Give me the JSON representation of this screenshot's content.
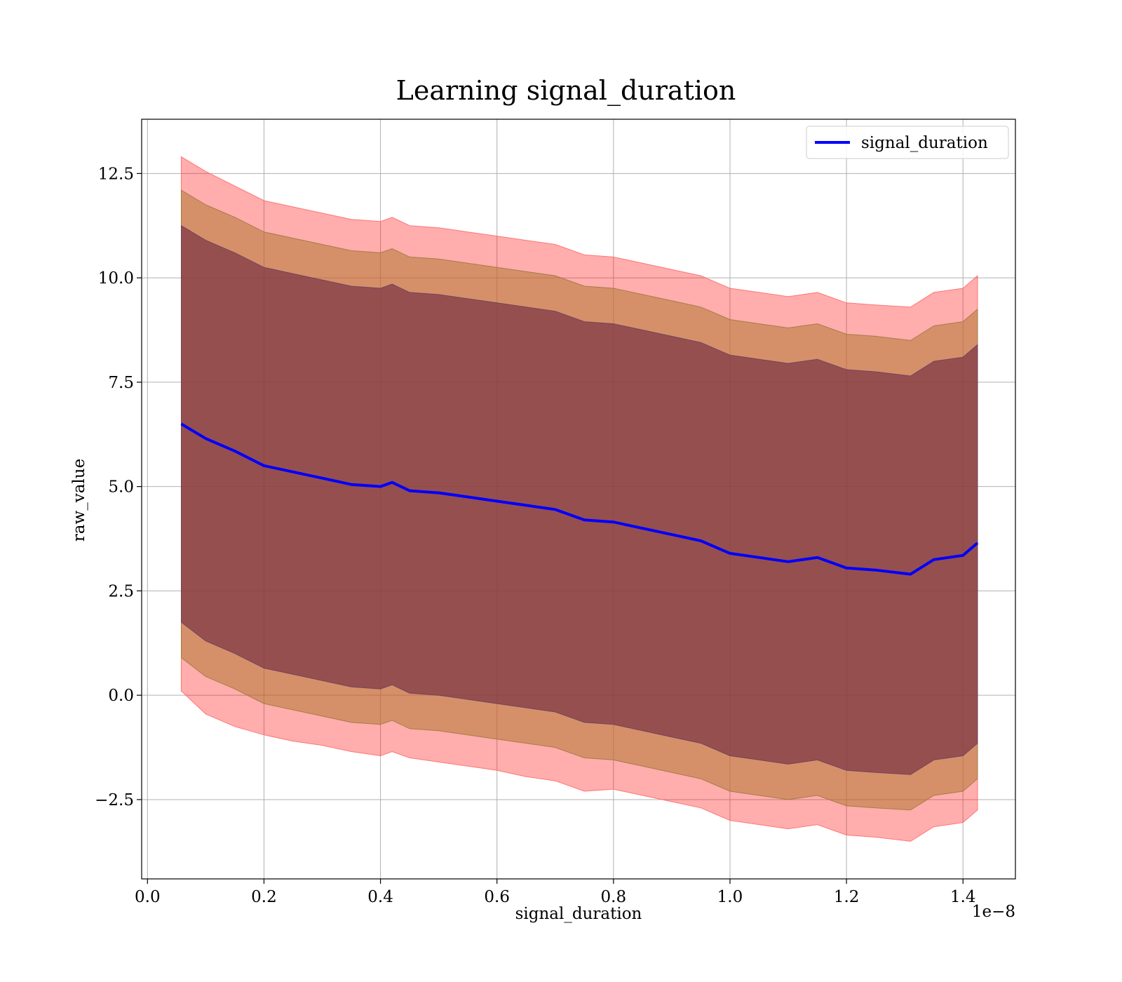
{
  "chart_data": {
    "type": "line",
    "title": "Learning signal_duration",
    "xlabel": "signal_duration",
    "ylabel": "raw_value",
    "x_offset_label": "1e−8",
    "xlim": [
      -0.01,
      1.49
    ],
    "ylim": [
      -4.4,
      13.8
    ],
    "x_ticks": [
      0.0,
      0.2,
      0.4,
      0.6,
      0.8,
      1.0,
      1.2,
      1.4
    ],
    "x_tick_labels": [
      "0.0",
      "0.2",
      "0.4",
      "0.6",
      "0.8",
      "1.0",
      "1.2",
      "1.4"
    ],
    "y_ticks": [
      -2.5,
      0.0,
      2.5,
      5.0,
      7.5,
      10.0,
      12.5
    ],
    "y_tick_labels": [
      "−2.5",
      "0.0",
      "2.5",
      "5.0",
      "7.5",
      "10.0",
      "12.5"
    ],
    "grid": true,
    "legend": {
      "placement": "top-right",
      "entries": [
        "signal_duration"
      ]
    },
    "colors": {
      "line": "#0000ff",
      "band_outer": "#ff0000",
      "band_middle": "#b47832",
      "band_inner": "#7a3344"
    },
    "x": [
      0.058,
      0.1,
      0.15,
      0.2,
      0.25,
      0.3,
      0.35,
      0.4,
      0.42,
      0.45,
      0.5,
      0.55,
      0.6,
      0.65,
      0.7,
      0.75,
      0.8,
      0.85,
      0.9,
      0.95,
      1.0,
      1.05,
      1.1,
      1.15,
      1.2,
      1.25,
      1.31,
      1.35,
      1.4,
      1.425
    ],
    "series": [
      {
        "name": "signal_duration",
        "values": [
          6.5,
          6.15,
          5.85,
          5.5,
          5.35,
          5.2,
          5.05,
          5.0,
          5.1,
          4.9,
          4.85,
          4.75,
          4.65,
          4.55,
          4.45,
          4.2,
          4.15,
          4.0,
          3.85,
          3.7,
          3.4,
          3.3,
          3.2,
          3.3,
          3.05,
          3.0,
          2.9,
          3.25,
          3.35,
          3.65
        ],
        "bands": [
          {
            "level": "outer",
            "lower": [
              0.1,
              -0.45,
              -0.75,
              -0.95,
              -1.1,
              -1.2,
              -1.35,
              -1.45,
              -1.35,
              -1.5,
              -1.6,
              -1.7,
              -1.8,
              -1.95,
              -2.05,
              -2.3,
              -2.25,
              -2.4,
              -2.55,
              -2.7,
              -3.0,
              -3.1,
              -3.2,
              -3.1,
              -3.35,
              -3.4,
              -3.5,
              -3.15,
              -3.05,
              -2.75
            ],
            "upper": [
              12.9,
              12.55,
              12.2,
              11.85,
              11.7,
              11.55,
              11.4,
              11.35,
              11.45,
              11.25,
              11.2,
              11.1,
              11.0,
              10.9,
              10.8,
              10.55,
              10.5,
              10.35,
              10.2,
              10.05,
              9.75,
              9.65,
              9.55,
              9.65,
              9.4,
              9.35,
              9.3,
              9.65,
              9.75,
              10.05
            ]
          },
          {
            "level": "middle",
            "lower": [
              0.9,
              0.45,
              0.15,
              -0.2,
              -0.35,
              -0.5,
              -0.65,
              -0.7,
              -0.6,
              -0.8,
              -0.85,
              -0.95,
              -1.05,
              -1.15,
              -1.25,
              -1.5,
              -1.55,
              -1.7,
              -1.85,
              -2.0,
              -2.3,
              -2.4,
              -2.5,
              -2.4,
              -2.65,
              -2.7,
              -2.75,
              -2.4,
              -2.3,
              -2.0
            ],
            "upper": [
              12.1,
              11.75,
              11.45,
              11.1,
              10.95,
              10.8,
              10.65,
              10.6,
              10.7,
              10.5,
              10.45,
              10.35,
              10.25,
              10.15,
              10.05,
              9.8,
              9.75,
              9.6,
              9.45,
              9.3,
              9.0,
              8.9,
              8.8,
              8.9,
              8.65,
              8.6,
              8.5,
              8.85,
              8.95,
              9.25
            ]
          },
          {
            "level": "inner",
            "lower": [
              1.75,
              1.3,
              1.0,
              0.65,
              0.5,
              0.35,
              0.2,
              0.15,
              0.25,
              0.05,
              0.0,
              -0.1,
              -0.2,
              -0.3,
              -0.4,
              -0.65,
              -0.7,
              -0.85,
              -1.0,
              -1.15,
              -1.45,
              -1.55,
              -1.65,
              -1.55,
              -1.8,
              -1.85,
              -1.9,
              -1.55,
              -1.45,
              -1.15
            ],
            "upper": [
              11.25,
              10.9,
              10.6,
              10.25,
              10.1,
              9.95,
              9.8,
              9.75,
              9.85,
              9.65,
              9.6,
              9.5,
              9.4,
              9.3,
              9.2,
              8.95,
              8.9,
              8.75,
              8.6,
              8.45,
              8.15,
              8.05,
              7.95,
              8.05,
              7.8,
              7.75,
              7.65,
              8.0,
              8.1,
              8.4
            ]
          }
        ]
      }
    ]
  }
}
